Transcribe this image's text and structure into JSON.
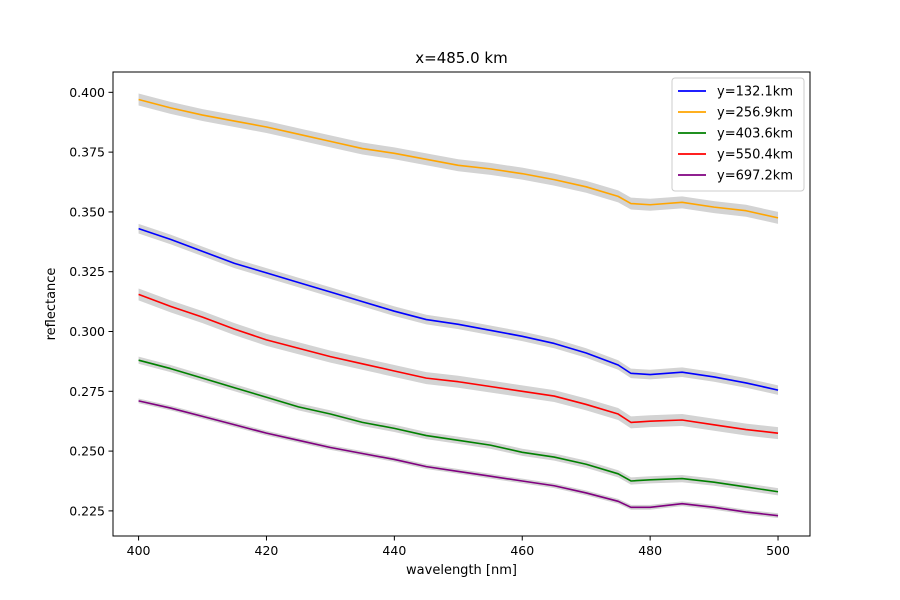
{
  "chart_data": {
    "type": "line",
    "title": "x=485.0 km",
    "xlabel": "wavelength [nm]",
    "ylabel": "reflectance",
    "xlim": [
      396,
      505
    ],
    "ylim": [
      0.2145,
      0.4085
    ],
    "xticks": [
      400,
      420,
      440,
      460,
      480,
      500
    ],
    "xtick_labels": [
      "400",
      "420",
      "440",
      "460",
      "480",
      "500"
    ],
    "yticks": [
      0.225,
      0.25,
      0.275,
      0.3,
      0.325,
      0.35,
      0.375,
      0.4
    ],
    "ytick_labels": [
      "0.225",
      "0.250",
      "0.275",
      "0.300",
      "0.325",
      "0.350",
      "0.375",
      "0.400"
    ],
    "grid": false,
    "legend_position": "top-right",
    "band_color": "#d3d3d3",
    "x": [
      400,
      405,
      410,
      415,
      420,
      425,
      430,
      435,
      440,
      445,
      450,
      455,
      460,
      465,
      470,
      475,
      477,
      480,
      485,
      490,
      495,
      500
    ],
    "series": [
      {
        "name": "y=132.1km",
        "color": "#0000ff",
        "band_halfwidth": 0.002,
        "values": [
          0.343,
          0.3385,
          0.3335,
          0.3285,
          0.3245,
          0.3205,
          0.3165,
          0.3125,
          0.3085,
          0.305,
          0.303,
          0.3005,
          0.298,
          0.295,
          0.291,
          0.286,
          0.2825,
          0.282,
          0.283,
          0.281,
          0.2785,
          0.2755
        ]
      },
      {
        "name": "y=256.9km",
        "color": "#ffa500",
        "band_halfwidth": 0.0025,
        "values": [
          0.397,
          0.3935,
          0.3905,
          0.388,
          0.3855,
          0.3825,
          0.3795,
          0.3765,
          0.3745,
          0.372,
          0.3695,
          0.368,
          0.366,
          0.3635,
          0.3605,
          0.3565,
          0.3535,
          0.353,
          0.354,
          0.352,
          0.3505,
          0.3475
        ]
      },
      {
        "name": "y=403.6km",
        "color": "#008000",
        "band_halfwidth": 0.0015,
        "values": [
          0.288,
          0.2845,
          0.2805,
          0.2765,
          0.2725,
          0.2685,
          0.2655,
          0.262,
          0.2595,
          0.2565,
          0.2545,
          0.2525,
          0.2495,
          0.2475,
          0.2445,
          0.2405,
          0.2375,
          0.238,
          0.2385,
          0.237,
          0.235,
          0.233
        ]
      },
      {
        "name": "y=550.4km",
        "color": "#ff0000",
        "band_halfwidth": 0.0025,
        "values": [
          0.3155,
          0.3105,
          0.306,
          0.301,
          0.2965,
          0.293,
          0.2895,
          0.2865,
          0.2835,
          0.2805,
          0.279,
          0.277,
          0.275,
          0.273,
          0.2695,
          0.2655,
          0.262,
          0.2625,
          0.263,
          0.261,
          0.259,
          0.2575
        ]
      },
      {
        "name": "y=697.2km",
        "color": "#800080",
        "band_halfwidth": 0.001,
        "values": [
          0.271,
          0.268,
          0.2645,
          0.261,
          0.2575,
          0.2545,
          0.2515,
          0.249,
          0.2465,
          0.2435,
          0.2415,
          0.2395,
          0.2375,
          0.2355,
          0.2325,
          0.229,
          0.2265,
          0.2265,
          0.228,
          0.2265,
          0.2245,
          0.223
        ]
      }
    ]
  }
}
